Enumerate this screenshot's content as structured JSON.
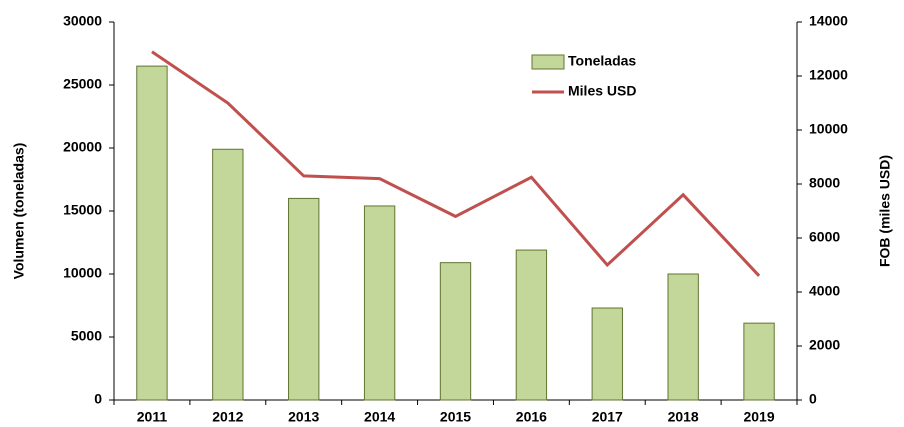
{
  "chart_data": {
    "type": "bar",
    "categories": [
      "2011",
      "2012",
      "2013",
      "2014",
      "2015",
      "2016",
      "2017",
      "2018",
      "2019"
    ],
    "series": [
      {
        "name": "Toneladas",
        "type": "bar",
        "color": "#c4d79b",
        "values": [
          26500,
          19900,
          16000,
          15400,
          10900,
          11900,
          7300,
          10000,
          6100
        ]
      },
      {
        "name": "Miles USD",
        "type": "line",
        "axis": "y2",
        "color": "#c0504d",
        "values": [
          12900,
          11000,
          8300,
          8200,
          6800,
          8250,
          5000,
          7600,
          4600
        ]
      }
    ],
    "ylabel": "Volumen (toneladas)",
    "y2label": "FOB (miles USD)",
    "ylim": [
      0,
      30000
    ],
    "yticks": [
      0,
      5000,
      10000,
      15000,
      20000,
      25000,
      30000
    ],
    "y2lim": [
      0,
      14000
    ],
    "y2ticks": [
      0,
      2000,
      4000,
      6000,
      8000,
      10000,
      12000,
      14000
    ],
    "legend": "upper right",
    "grid": false
  }
}
